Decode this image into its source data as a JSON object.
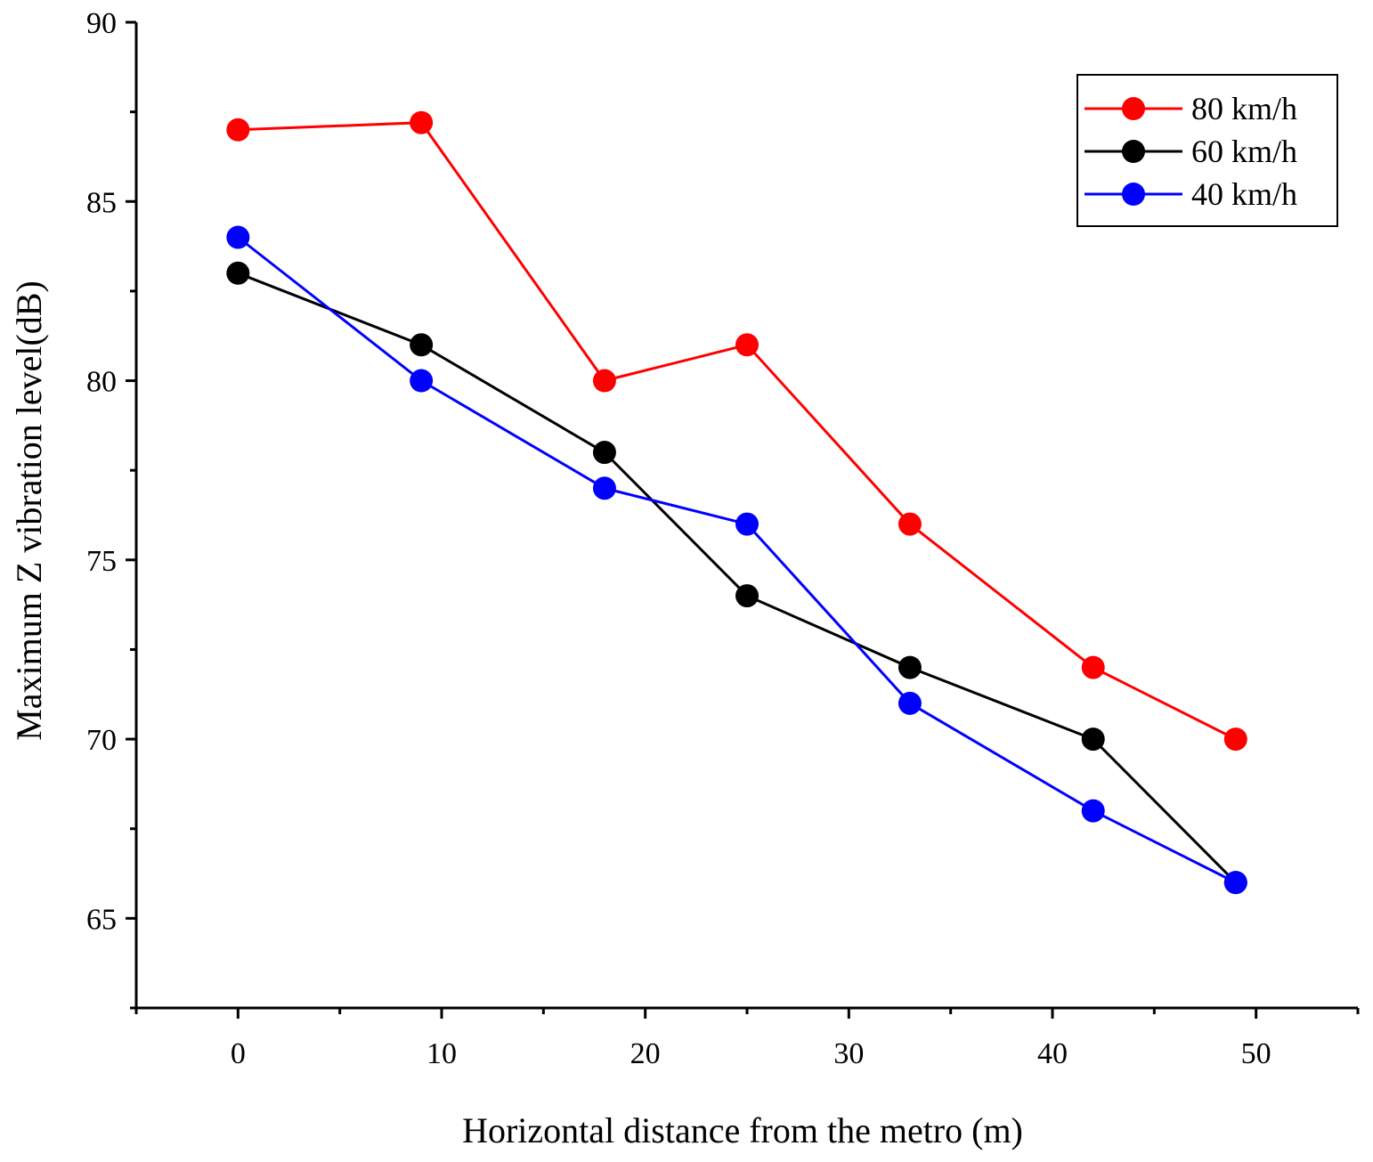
{
  "chart_data": {
    "type": "line",
    "title": "",
    "xlabel": "Horizontal distance from the metro (m)",
    "ylabel": "Maximum Z vibration level(dB)",
    "xlim": [
      -5,
      55
    ],
    "ylim": [
      62.5,
      90
    ],
    "xticks": [
      0,
      10,
      20,
      30,
      40,
      50
    ],
    "xticklabels": [
      "0",
      "10",
      "20",
      "30",
      "40",
      "50"
    ],
    "yticks": [
      65,
      70,
      75,
      80,
      85,
      90
    ],
    "yticklabels": [
      "65",
      "70",
      "75",
      "80",
      "85",
      "90"
    ],
    "grid": false,
    "legend_position": "top-right",
    "x": [
      0,
      9,
      18,
      25,
      33,
      42,
      49
    ],
    "series": [
      {
        "name": "80 km/h",
        "color": "#ff0000",
        "values": [
          87,
          87.2,
          80,
          81,
          76,
          72,
          70
        ]
      },
      {
        "name": "60 km/h",
        "color": "#000000",
        "values": [
          83,
          81,
          78,
          74,
          72,
          70,
          66
        ]
      },
      {
        "name": "40 km/h",
        "color": "#0000ff",
        "values": [
          84,
          80,
          77,
          76,
          71,
          68,
          66
        ]
      }
    ]
  }
}
